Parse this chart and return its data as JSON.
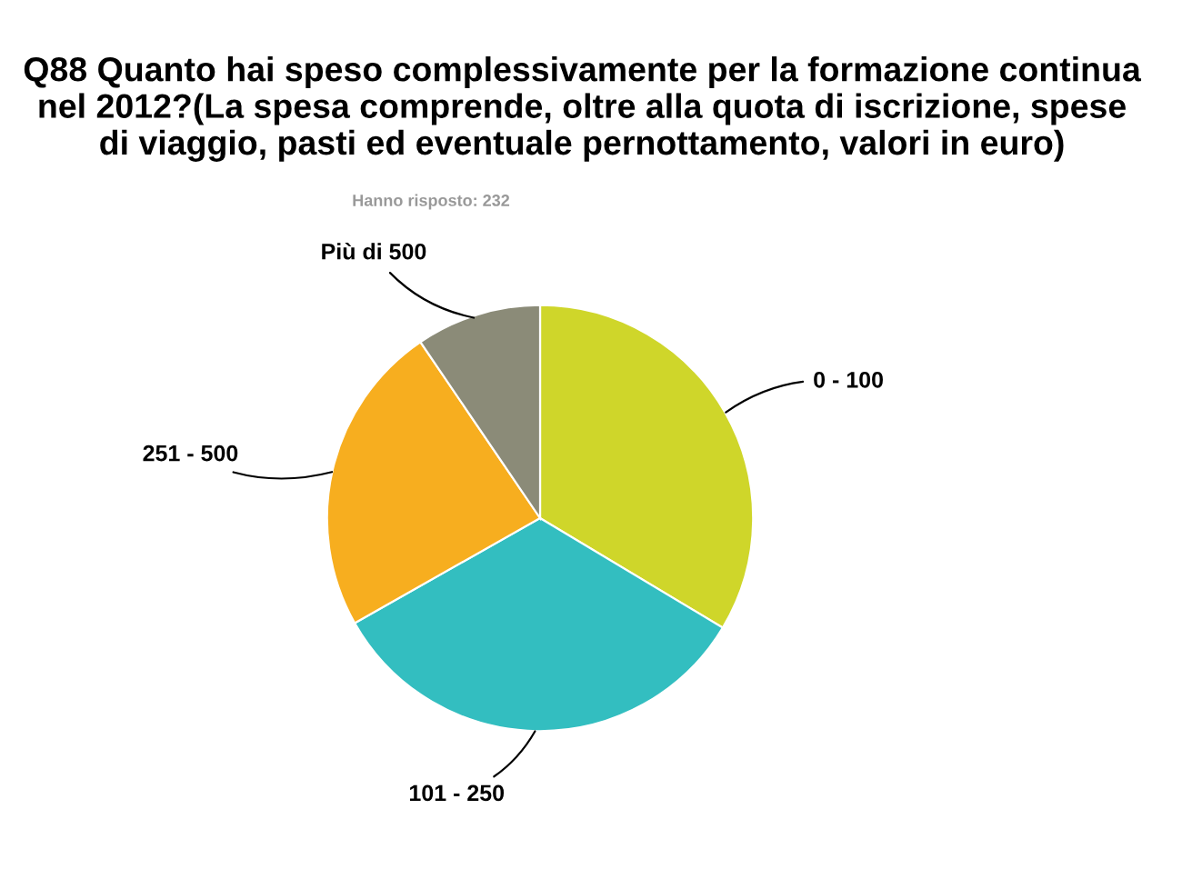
{
  "chart_data": {
    "type": "pie",
    "title": "Q88 Quanto hai speso complessivamente per la formazione continua\nnel 2012?(La spesa comprende, oltre alla quota di iscrizione, spese\ndi viaggio, pasti ed eventuale pernottamento, valori in euro)",
    "subtitle": "Hanno risposto: 232",
    "categories": [
      "0 - 100",
      "101 - 250",
      "251 - 500",
      "Più di 500"
    ],
    "values": [
      33.6,
      33.2,
      23.7,
      9.5
    ],
    "colors": [
      "#cfd62a",
      "#33bec0",
      "#f7ae1f",
      "#8b8b78"
    ]
  }
}
